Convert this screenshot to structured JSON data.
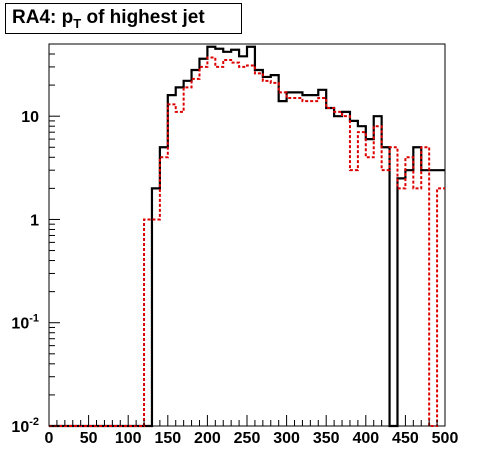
{
  "chart_data": {
    "type": "histogram",
    "title": {
      "prefix": "RA4: p",
      "subscript": "T",
      "suffix": " of highest jet"
    },
    "xlabel": "",
    "ylabel": "",
    "xlim": [
      0,
      500
    ],
    "ylim": [
      0.01,
      50
    ],
    "log_y": true,
    "grid": false,
    "legend": "none",
    "bin_width": 10,
    "x_ticks": [
      "0",
      "50",
      "100",
      "150",
      "200",
      "250",
      "300",
      "350",
      "400",
      "450",
      "500"
    ],
    "y_ticks": [
      {
        "value": 10,
        "label": "10"
      },
      {
        "value": 1,
        "label": "1"
      },
      {
        "value": 0.1,
        "label": "10",
        "exp": "-1"
      },
      {
        "value": 0.01,
        "label": "10",
        "exp": "-2"
      }
    ],
    "series": [
      {
        "style": "solid",
        "color": "#000000",
        "values": [
          0.01,
          0.01,
          0.01,
          0.01,
          0.01,
          0.01,
          0.01,
          0.01,
          0.01,
          0.01,
          0.01,
          0.01,
          0.01,
          2,
          5,
          16,
          19,
          22,
          28,
          36,
          47,
          45,
          42,
          44,
          38,
          47,
          28,
          24,
          25,
          14,
          17,
          17,
          16,
          16,
          18,
          12,
          10,
          11,
          9,
          8,
          6,
          10,
          5,
          0.01,
          2.5,
          3,
          5,
          3,
          3,
          3
        ]
      },
      {
        "style": "dashed",
        "color": "#dd0000",
        "values": [
          0.01,
          0.01,
          0.01,
          0.01,
          0.01,
          0.01,
          0.01,
          0.01,
          0.01,
          0.01,
          0.01,
          0.01,
          1,
          1,
          4,
          13,
          11,
          19,
          23,
          30,
          37,
          30,
          35,
          33,
          30,
          31,
          26,
          22,
          21,
          17,
          15,
          15,
          14,
          14,
          15,
          12,
          11,
          10,
          3,
          7,
          4,
          8,
          3,
          5,
          2,
          4,
          2,
          5,
          0.01,
          2
        ]
      }
    ]
  }
}
